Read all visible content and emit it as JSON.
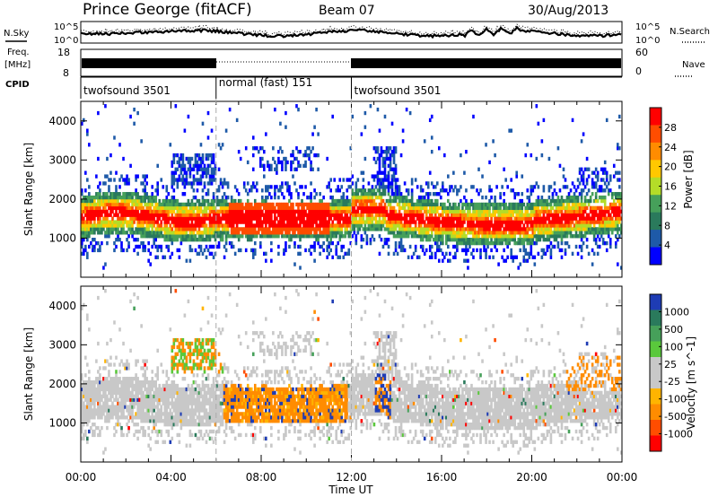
{
  "header": {
    "station": "Prince George (fitACF)",
    "beam": "Beam 07",
    "date": "30/Aug/2013"
  },
  "left_labels": {
    "nsky": "N.Sky",
    "freq_line1": "Freq.",
    "freq_line2": "[MHz]",
    "cpid": "CPID"
  },
  "right_labels": {
    "nsearch": "N.Search",
    "nave": "Nave"
  },
  "noise_axis": {
    "left_top": "10^5",
    "left_bottom": "10^0",
    "right_top": "10^5",
    "right_bottom": "10^0"
  },
  "freq_axis": {
    "left_ticks": [
      "18",
      "8"
    ],
    "right_ticks": [
      "60",
      "0"
    ]
  },
  "cpid_segments": [
    {
      "label": "twofsound 3501",
      "start_hour": 0,
      "end_hour": 6
    },
    {
      "label": "normal (fast) 151",
      "start_hour": 6,
      "end_hour": 12
    },
    {
      "label": "twofsound 3501",
      "start_hour": 12,
      "end_hour": 24
    }
  ],
  "x_axis": {
    "label": "Time UT",
    "ticks": [
      "00:00",
      "04:00",
      "08:00",
      "12:00",
      "16:00",
      "20:00",
      "00:00"
    ],
    "tick_hours": [
      0,
      4,
      8,
      12,
      16,
      20,
      24
    ]
  },
  "chart_data": [
    {
      "type": "heatmap",
      "title": "",
      "xlabel": "Time UT",
      "ylabel": "Slant Range [km]",
      "xlim_hours": [
        0,
        24
      ],
      "ylim": [
        0,
        4500
      ],
      "yticks": [
        1000,
        2000,
        3000,
        4000
      ],
      "colorbar": {
        "label": "Power [dB]",
        "ticks": [
          "28",
          "24",
          "20",
          "16",
          "12",
          "8",
          "4"
        ],
        "colors": [
          "#ff0000",
          "#ff4d00",
          "#ff8c00",
          "#ffc800",
          "#b4dc28",
          "#46a05a",
          "#2a7a5c",
          "#1e5aa8",
          "#0000ff"
        ]
      }
    },
    {
      "type": "heatmap",
      "title": "",
      "xlabel": "Time UT",
      "ylabel": "Slant Range [km]",
      "xlim_hours": [
        0,
        24
      ],
      "ylim": [
        0,
        4500
      ],
      "yticks": [
        1000,
        2000,
        3000,
        4000
      ],
      "colorbar": {
        "label": "Velocity [m s^-1]",
        "ticks": [
          "1000",
          "500",
          "100",
          "25",
          "-25",
          "-100",
          "-500",
          "-1000"
        ],
        "colors": [
          "#1e3cb4",
          "#2a7a5c",
          "#46a05a",
          "#5ac83c",
          "#c8c8c8",
          "#c8c8c8",
          "#ffb400",
          "#ff8c00",
          "#ff4d00",
          "#ff0000"
        ]
      }
    }
  ]
}
